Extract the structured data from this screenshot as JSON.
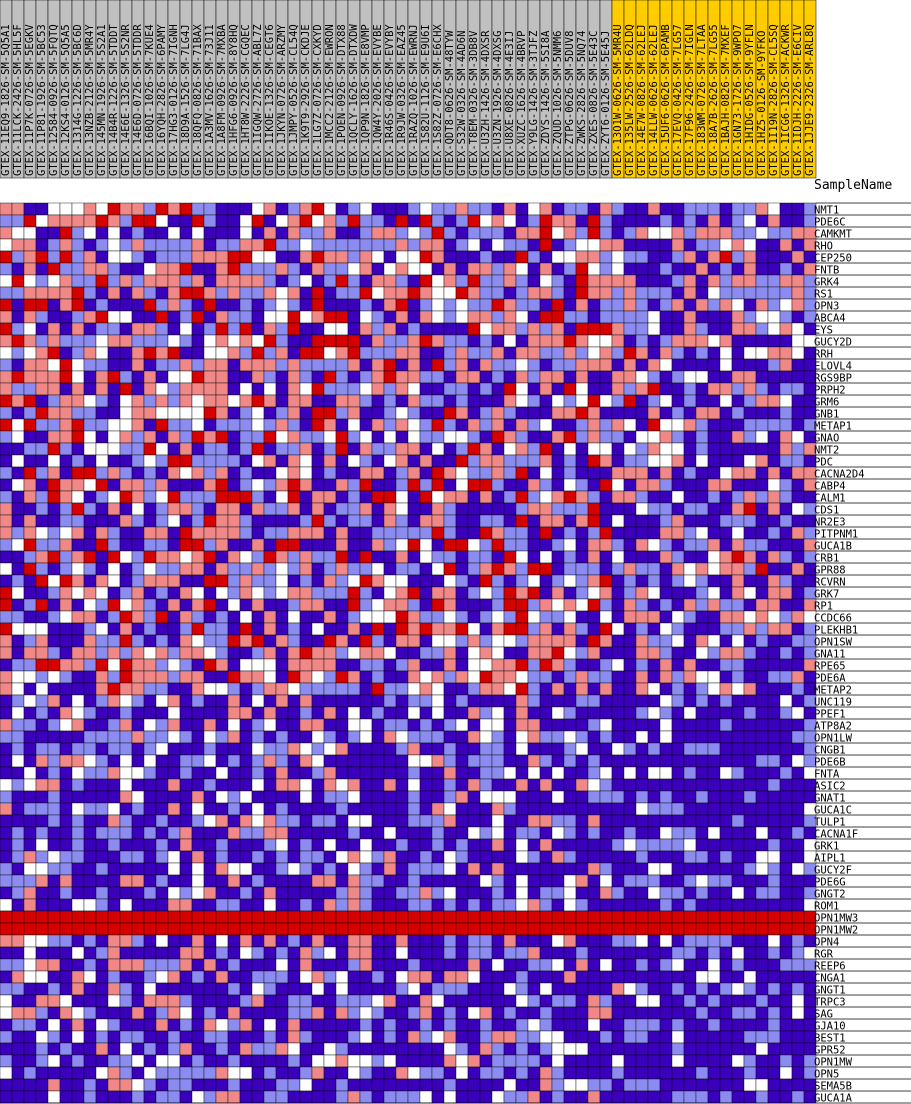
{
  "header": {
    "sample_name_label": "SampleName"
  },
  "chart_data": {
    "type": "heatmap",
    "title": "",
    "colors": {
      "high": "#d50000",
      "mid_high": "#f08888",
      "mid": "#ffffff",
      "mid_low": "#8c8cf0",
      "low": "#3a00bb",
      "group_a_label_bg": "#c0c0c0",
      "group_b_label_bg": "#ffcc00",
      "grid": "#000000"
    },
    "samples": [
      {
        "name": "GTEX-11EQ9-1826-SM-5Q5A1",
        "group": "a"
      },
      {
        "name": "GTEX-11LCK-2426-SM-5HL5F",
        "group": "a"
      },
      {
        "name": "GTEX-11P7K-0726-SM-5EGKV",
        "group": "a"
      },
      {
        "name": "GTEX-11P81-1926-SM-5BC53",
        "group": "a"
      },
      {
        "name": "GTEX-12584-0926-SM-5FQTQ",
        "group": "a"
      },
      {
        "name": "GTEX-12KS4-0126-SM-5Q5A5",
        "group": "a"
      },
      {
        "name": "GTEX-1314G-1226-SM-5BC6D",
        "group": "a"
      },
      {
        "name": "GTEX-13NZB-2126-SM-5MR4Y",
        "group": "a"
      },
      {
        "name": "GTEX-145MN-1926-SM-5S2A1",
        "group": "a"
      },
      {
        "name": "GTEX-14B4R-1226-SM-5TDDT",
        "group": "a"
      },
      {
        "name": "GTEX-14E6E-1326-SM-5S2NR",
        "group": "a"
      },
      {
        "name": "GTEX-14E6D-0726-SM-5TDDR",
        "group": "a"
      },
      {
        "name": "GTEX-16BQI-1026-SM-7KUE4",
        "group": "a"
      },
      {
        "name": "GTEX-16YQH-2826-SM-6PAMY",
        "group": "a"
      },
      {
        "name": "GTEX-17HG3-0126-SM-7IGNH",
        "group": "a"
      },
      {
        "name": "GTEX-18D9A-1526-SM-7LG4J",
        "group": "a"
      },
      {
        "name": "GTEX-18QFQ-0826-SM-71BAX",
        "group": "a"
      },
      {
        "name": "GTEX-1A3MV-1626-SM-73J11",
        "group": "a"
      },
      {
        "name": "GTEX-1A8FM-0926-SM-7MXBA",
        "group": "a"
      },
      {
        "name": "GTEX-1HFG6-0926-SM-8Y8HQ",
        "group": "a"
      },
      {
        "name": "GTEX-1HT8W-2226-SM-CGQEC",
        "group": "a"
      },
      {
        "name": "GTEX-1IGQW-2726-SM-ABL7Z",
        "group": "a"
      },
      {
        "name": "GTEX-1IKOE-1326-SM-CEGT6",
        "group": "a"
      },
      {
        "name": "GTEX-1JKYN-0726-SM-ARZMY",
        "group": "a"
      },
      {
        "name": "GTEX-1JMPY-0526-SM-CL54Q",
        "group": "a"
      },
      {
        "name": "GTEX-1K9T9-2926-SM-CKDJE",
        "group": "a"
      },
      {
        "name": "GTEX-1LG7Z-0726-SM-CXKYD",
        "group": "a"
      },
      {
        "name": "GTEX-1MCC2-2126-SM-EWRON",
        "group": "a"
      },
      {
        "name": "GTEX-1POEN-0926-SM-DTX88",
        "group": "a"
      },
      {
        "name": "GTEX-1QCLY-1626-SM-DTXDW",
        "group": "a"
      },
      {
        "name": "GTEX-1QP9N-1826-SM-E8VMP",
        "group": "a"
      },
      {
        "name": "GTEX-1QW4Y-2026-SM-EVYBE",
        "group": "a"
      },
      {
        "name": "GTEX-1R46S-0426-SM-EVYBY",
        "group": "a"
      },
      {
        "name": "GTEX-1R9JW-0326-SM-EAZ45",
        "group": "a"
      },
      {
        "name": "GTEX-1RAZQ-1026-SM-EWRNJ",
        "group": "a"
      },
      {
        "name": "GTEX-1S82U-1126-SM-E9U6I",
        "group": "a"
      },
      {
        "name": "GTEX-1S82Z-0726-SM-E6CHX",
        "group": "a"
      },
      {
        "name": "GTEX-QDT8-0626-SM-48TYW",
        "group": "a"
      },
      {
        "name": "GTEX-S32W-0326-SM-4AD6N",
        "group": "a"
      },
      {
        "name": "GTEX-T8EM-0326-SM-3DB8V",
        "group": "a"
      },
      {
        "name": "GTEX-U3ZH-1426-SM-4DXSR",
        "group": "a"
      },
      {
        "name": "GTEX-U3ZN-1926-SM-4DXSG",
        "group": "a"
      },
      {
        "name": "GTEX-U8XE-0826-SM-4E3IJ",
        "group": "a"
      },
      {
        "name": "GTEX-XUZC-1626-SM-4BRVP",
        "group": "a"
      },
      {
        "name": "GTEX-Y9LG-1426-SM-3TJFZ",
        "group": "a"
      },
      {
        "name": "GTEX-ZDYS-1426-SM-5SI8A",
        "group": "a"
      },
      {
        "name": "GTEX-ZQUD-1026-SM-5NMM6",
        "group": "a"
      },
      {
        "name": "GTEX-ZTPG-0626-SM-5DUV8",
        "group": "a"
      },
      {
        "name": "GTEX-ZWKS-2826-SM-5NQ74",
        "group": "a"
      },
      {
        "name": "GTEX-ZXES-0826-SM-5E43C",
        "group": "a"
      },
      {
        "name": "GTEX-ZYT6-0126-SM-5E45J",
        "group": "a"
      },
      {
        "name": "GTEX-13O1W-0626-SM-5MR4U",
        "group": "b"
      },
      {
        "name": "GTEX-135LW-2526-SM-62LDQ",
        "group": "b"
      },
      {
        "name": "GTEX-14E7W-0826-SM-62LEJ",
        "group": "b"
      },
      {
        "name": "GTEX-14LLW-0626-SM-62LEJ",
        "group": "b"
      },
      {
        "name": "GTEX-15UF6-0626-SM-6PAMB",
        "group": "b"
      },
      {
        "name": "GTEX-17EVQ-0426-SM-7LG57",
        "group": "b"
      },
      {
        "name": "GTEX-17F96-2426-SM-7IGLN",
        "group": "b"
      },
      {
        "name": "GTEX-183WM-0726-SM-7LTAA",
        "group": "b"
      },
      {
        "name": "GTEX-18A7B-2626-SM-7LG55",
        "group": "b"
      },
      {
        "name": "GTEX-1BAJH-0826-SM-7MXEF",
        "group": "b"
      },
      {
        "name": "GTEX-1GN73-1726-SM-9WPO7",
        "group": "b"
      },
      {
        "name": "GTEX-1HIDG-0526-SM-9YFLN",
        "group": "b"
      },
      {
        "name": "GTEX-1HZ5-0126-SM-9YFKO",
        "group": "b"
      },
      {
        "name": "GTEX-1I19N-2826-SM-CL5SQ",
        "group": "b"
      },
      {
        "name": "GTEX-1ICG6-1326-SM-ACKWR",
        "group": "b"
      },
      {
        "name": "GTEX-1IDJH-2226-SM-E6CIV",
        "group": "b"
      },
      {
        "name": "GTEX-1JJE9-2326-SM-ARL8Q",
        "group": "b"
      }
    ],
    "genes": [
      "NMT1",
      "PDE6C",
      "CAMKMT",
      "RHO",
      "CEP250",
      "FNTB",
      "GRK4",
      "RS1",
      "OPN3",
      "ABCA4",
      "EYS",
      "GUCY2D",
      "RRH",
      "ELOVL4",
      "RGS9BP",
      "PRPH2",
      "GRM6",
      "GNB1",
      "METAP1",
      "GNAO",
      "NMT2",
      "PDC",
      "CACNA2D4",
      "CABP4",
      "CALM1",
      "CDS1",
      "NR2E3",
      "PITPNM1",
      "GUCA1B",
      "CRB1",
      "GPR88",
      "RCVRN",
      "GRK7",
      "RP1",
      "CCDC66",
      "PLEKHB1",
      "OPN1SW",
      "GNA11",
      "RPE65",
      "PDE6A",
      "METAP2",
      "UNC119",
      "PPEF1",
      "ATP8A2",
      "OPN1LW",
      "CNGB1",
      "PDE6B",
      "FNTA",
      "ASIC2",
      "GNAT1",
      "GUCA1C",
      "TULP1",
      "CACNA1F",
      "GRK1",
      "AIPL1",
      "GUCY2F",
      "PDE6G",
      "GNGT2",
      "ROM1",
      "OPN1MW3",
      "OPN1MW2",
      "OPN4",
      "RGR",
      "REEP6",
      "CNGA1",
      "GNGT1",
      "TRPC3",
      "SAG",
      "GJA10",
      "BEST1",
      "GPR52",
      "OPN1MW",
      "OPN5",
      "SEMA5B",
      "GUCA1A"
    ],
    "row_profiles": {
      "OPN1MW3": "all_high",
      "OPN1MW2": "all_high"
    },
    "grid": true
  }
}
